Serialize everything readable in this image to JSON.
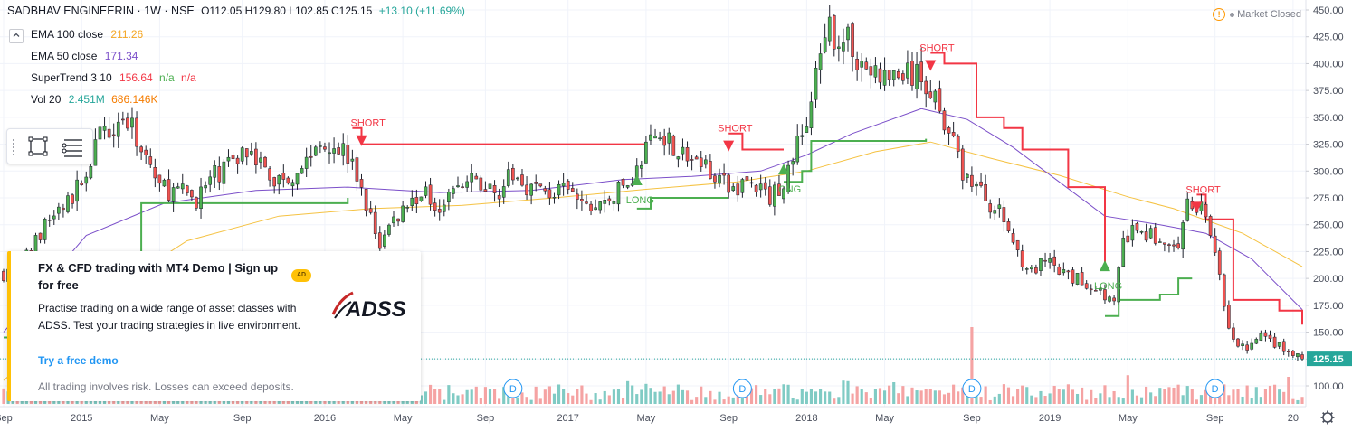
{
  "header": {
    "symbol": "SADBHAV ENGINEERIN · 1W · NSE",
    "ohlc": "O112.05 H129.80 L102.85 C125.15",
    "change": "+13.10 (+11.69%)"
  },
  "legend": [
    {
      "name": "EMA 100 close",
      "value": "211.26",
      "color": "#f5a623"
    },
    {
      "name": "EMA 50 close",
      "value": "171.34",
      "color": "#7b4fc9"
    },
    {
      "name": "SuperTrend 3 10",
      "value": "156.64",
      "extra1": "n/a",
      "extra2": "n/a",
      "color": "#f23645",
      "extra1_color": "#4caf50",
      "extra2_color": "#f23645"
    },
    {
      "name": "Vol 20",
      "value": "2.451M",
      "value2": "686.146K",
      "color": "#26a69a",
      "value2_color": "#f57c00"
    }
  ],
  "market_status": "Market Closed",
  "collapse_icon": "chevron-up-icon",
  "toolbox": {
    "tools": [
      "rectangle-icon",
      "long-short-icon"
    ]
  },
  "ad": {
    "title": "FX & CFD trading with MT4 Demo | Sign up for free",
    "badge": "AD",
    "body": "Practise trading on a wide range of asset classes with ADSS. Test your trading strategies in live environment.",
    "link": "Try a free demo",
    "note": "All trading involves risk. Losses can exceed deposits.",
    "logo": "ADSS"
  },
  "colors": {
    "up": "#4caf50",
    "down": "#ef5350",
    "ema100": "#f5c242",
    "ema50": "#7b4fc9",
    "supertrend_up": "#4caf50",
    "supertrend_down": "#f23645",
    "vol_up": "#80cbc4",
    "vol_down": "#f5a3a3",
    "last_price_bg": "#26a69a"
  },
  "chart_data": {
    "type": "candlestick",
    "title": "SADBHAV ENGINEERIN · 1W · NSE",
    "y_axis": {
      "ticks": [
        100,
        125,
        150,
        175,
        200,
        225,
        250,
        275,
        300,
        325,
        350,
        375,
        400,
        425,
        450
      ],
      "tick_labels": [
        "100.00",
        "125.00",
        "150.00",
        "175.00",
        "200.00",
        "225.00",
        "250.00",
        "275.00",
        "300.00",
        "325.00",
        "350.00",
        "375.00",
        "400.00",
        "425.00",
        "450.00"
      ],
      "ylim": [
        88,
        452
      ],
      "last_price": 125.15,
      "last_price_label": "125.15"
    },
    "x_axis": {
      "tick_labels": [
        "Sep",
        "2015",
        "May",
        "Sep",
        "2016",
        "May",
        "Sep",
        "2017",
        "May",
        "Sep",
        "2018",
        "May",
        "Sep",
        "2019",
        "May",
        "Sep",
        "20"
      ],
      "tick_index": [
        0,
        17,
        34,
        52,
        70,
        87,
        105,
        123,
        140,
        158,
        175,
        192,
        211,
        228,
        245,
        264,
        281
      ],
      "n_weeks": 284
    },
    "anchors": [
      [
        0,
        205
      ],
      [
        5,
        220
      ],
      [
        10,
        255
      ],
      [
        15,
        275
      ],
      [
        18,
        300
      ],
      [
        22,
        340
      ],
      [
        26,
        350
      ],
      [
        30,
        325
      ],
      [
        34,
        285
      ],
      [
        38,
        280
      ],
      [
        42,
        275
      ],
      [
        46,
        295
      ],
      [
        50,
        310
      ],
      [
        54,
        325
      ],
      [
        58,
        290
      ],
      [
        62,
        295
      ],
      [
        66,
        310
      ],
      [
        70,
        330
      ],
      [
        74,
        320
      ],
      [
        77,
        295
      ],
      [
        80,
        255
      ],
      [
        82,
        232
      ],
      [
        85,
        255
      ],
      [
        88,
        270
      ],
      [
        91,
        280
      ],
      [
        95,
        270
      ],
      [
        99,
        285
      ],
      [
        103,
        290
      ],
      [
        107,
        280
      ],
      [
        111,
        295
      ],
      [
        115,
        285
      ],
      [
        119,
        280
      ],
      [
        123,
        280
      ],
      [
        127,
        265
      ],
      [
        131,
        270
      ],
      [
        135,
        285
      ],
      [
        138,
        300
      ],
      [
        141,
        330
      ],
      [
        144,
        335
      ],
      [
        148,
        315
      ],
      [
        152,
        305
      ],
      [
        155,
        300
      ],
      [
        158,
        280
      ],
      [
        161,
        290
      ],
      [
        164,
        285
      ],
      [
        167,
        275
      ],
      [
        170,
        290
      ],
      [
        172,
        315
      ],
      [
        175,
        345
      ],
      [
        177,
        385
      ],
      [
        180,
        430
      ],
      [
        184,
        420
      ],
      [
        188,
        395
      ],
      [
        192,
        385
      ],
      [
        196,
        390
      ],
      [
        200,
        385
      ],
      [
        204,
        365
      ],
      [
        206,
        335
      ],
      [
        209,
        300
      ],
      [
        212,
        285
      ],
      [
        215,
        270
      ],
      [
        218,
        255
      ],
      [
        221,
        225
      ],
      [
        224,
        205
      ],
      [
        227,
        215
      ],
      [
        230,
        205
      ],
      [
        233,
        200
      ],
      [
        236,
        195
      ],
      [
        239,
        190
      ],
      [
        242,
        175
      ],
      [
        244,
        235
      ],
      [
        247,
        245
      ],
      [
        250,
        240
      ],
      [
        253,
        230
      ],
      [
        256,
        225
      ],
      [
        258,
        265
      ],
      [
        260,
        270
      ],
      [
        262,
        260
      ],
      [
        264,
        225
      ],
      [
        266,
        170
      ],
      [
        268,
        140
      ],
      [
        271,
        135
      ],
      [
        274,
        145
      ],
      [
        277,
        140
      ],
      [
        280,
        130
      ],
      [
        283,
        125
      ]
    ],
    "ema100": [
      [
        0,
        105
      ],
      [
        20,
        180
      ],
      [
        40,
        235
      ],
      [
        60,
        258
      ],
      [
        80,
        265
      ],
      [
        100,
        268
      ],
      [
        120,
        275
      ],
      [
        140,
        283
      ],
      [
        160,
        290
      ],
      [
        175,
        300
      ],
      [
        190,
        318
      ],
      [
        202,
        327
      ],
      [
        215,
        312
      ],
      [
        230,
        296
      ],
      [
        245,
        276
      ],
      [
        255,
        265
      ],
      [
        270,
        242
      ],
      [
        283,
        211
      ]
    ],
    "ema50": [
      [
        0,
        150
      ],
      [
        18,
        240
      ],
      [
        35,
        270
      ],
      [
        55,
        282
      ],
      [
        75,
        285
      ],
      [
        95,
        280
      ],
      [
        115,
        282
      ],
      [
        135,
        292
      ],
      [
        150,
        295
      ],
      [
        165,
        300
      ],
      [
        175,
        315
      ],
      [
        185,
        335
      ],
      [
        200,
        358
      ],
      [
        210,
        348
      ],
      [
        220,
        322
      ],
      [
        230,
        290
      ],
      [
        240,
        258
      ],
      [
        252,
        250
      ],
      [
        262,
        242
      ],
      [
        272,
        218
      ],
      [
        283,
        171
      ]
    ],
    "supertrend": [
      {
        "dir": "up",
        "points": [
          [
            0,
            145
          ],
          [
            20,
            222
          ],
          [
            30,
            270
          ],
          [
            46,
            270
          ],
          [
            62,
            270
          ],
          [
            75,
            275
          ]
        ]
      },
      {
        "dir": "down",
        "points": [
          [
            76,
            340
          ],
          [
            78,
            325
          ],
          [
            125,
            325
          ],
          [
            140,
            322
          ]
        ]
      },
      {
        "dir": "up",
        "points": [
          [
            138,
            265
          ],
          [
            141,
            275
          ],
          [
            158,
            275
          ]
        ]
      },
      {
        "dir": "down",
        "points": [
          [
            158,
            335
          ],
          [
            161,
            320
          ],
          [
            170,
            320
          ]
        ]
      },
      {
        "dir": "up",
        "points": [
          [
            170,
            290
          ],
          [
            174,
            300
          ],
          [
            176,
            328
          ],
          [
            201,
            330
          ]
        ]
      },
      {
        "dir": "down",
        "points": [
          [
            202,
            410
          ],
          [
            205,
            400
          ],
          [
            212,
            350
          ],
          [
            218,
            340
          ],
          [
            222,
            320
          ],
          [
            232,
            285
          ],
          [
            240,
            215
          ]
        ]
      },
      {
        "dir": "up",
        "points": [
          [
            240,
            165
          ],
          [
            243,
            180
          ],
          [
            252,
            185
          ],
          [
            256,
            200
          ],
          [
            259,
            200
          ]
        ]
      },
      {
        "dir": "down",
        "points": [
          [
            260,
            278
          ],
          [
            262,
            255
          ],
          [
            268,
            180
          ],
          [
            278,
            170
          ],
          [
            283,
            157
          ]
        ]
      }
    ],
    "signals": [
      {
        "label": "SHORT",
        "week": 78,
        "price": 340,
        "dir": "short"
      },
      {
        "label": "LONG",
        "week": 138,
        "price": 280,
        "dir": "long"
      },
      {
        "label": "SHORT",
        "week": 158,
        "price": 335,
        "dir": "short"
      },
      {
        "label": "LONG",
        "week": 170,
        "price": 290,
        "dir": "long"
      },
      {
        "label": "SHORT",
        "week": 202,
        "price": 410,
        "dir": "short"
      },
      {
        "label": "LONG",
        "week": 240,
        "price": 200,
        "dir": "long"
      },
      {
        "label": "SHORT",
        "week": 260,
        "price": 278,
        "dir": "short"
      }
    ],
    "dividends": [
      {
        "label": "D",
        "week": 111
      },
      {
        "label": "D",
        "week": 161
      },
      {
        "label": "D",
        "week": 211
      },
      {
        "label": "D",
        "week": 264
      }
    ],
    "volume_spikes": [
      [
        211,
        85
      ],
      [
        280,
        30
      ],
      [
        46,
        16
      ]
    ],
    "grid": true
  }
}
